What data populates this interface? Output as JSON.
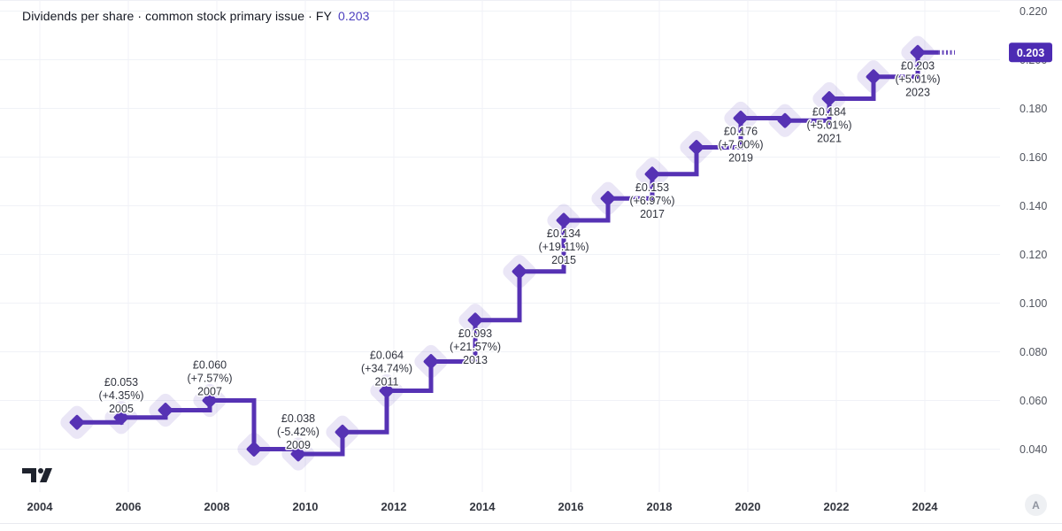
{
  "title": {
    "text": "Dividends per share · common stock primary issue · FY",
    "value": "0.203"
  },
  "attribution": {
    "label": "A"
  },
  "colors": {
    "accent": "#5632b4",
    "halo": "rgba(86,50,180,0.12)",
    "badge_bg": "#4c2bb3",
    "badge_text": "#ffffff",
    "grid": "#f0f2f7",
    "frame": "#e8eaef",
    "title_value": "#4a3dbe",
    "annotation_text": "#30333e",
    "annotation_halo": "#ffffff",
    "y_axis_text": "#51555f",
    "x_axis_text": "#33363f",
    "logo": "#1e222d"
  },
  "chart_data": {
    "type": "step-line",
    "title": "Dividends per share · common stock primary issue",
    "period": "FY",
    "currency": "GBP",
    "years": [
      2004,
      2005,
      2006,
      2007,
      2008,
      2009,
      2010,
      2011,
      2012,
      2013,
      2014,
      2015,
      2016,
      2017,
      2018,
      2019,
      2020,
      2021,
      2022,
      2023
    ],
    "values": [
      0.051,
      0.053,
      0.056,
      0.06,
      0.04,
      0.038,
      0.047,
      0.064,
      0.076,
      0.093,
      0.113,
      0.134,
      0.143,
      0.153,
      0.164,
      0.176,
      0.175,
      0.184,
      0.193,
      0.203
    ],
    "annotations": [
      {
        "year": 2005,
        "value_label": "£0.053",
        "change_label": "(+4.35%)",
        "year_label": "2005",
        "placement": "above"
      },
      {
        "year": 2007,
        "value_label": "£0.060",
        "change_label": "(+7.57%)",
        "year_label": "2007",
        "placement": "above"
      },
      {
        "year": 2009,
        "value_label": "£0.038",
        "change_label": "(-5.42%)",
        "year_label": "2009",
        "placement": "above"
      },
      {
        "year": 2011,
        "value_label": "£0.064",
        "change_label": "(+34.74%)",
        "year_label": "2011",
        "placement": "above"
      },
      {
        "year": 2013,
        "value_label": "£0.093",
        "change_label": "(+21.57%)",
        "year_label": "2013",
        "placement": "below"
      },
      {
        "year": 2015,
        "value_label": "£0.134",
        "change_label": "(+19.11%)",
        "year_label": "2015",
        "placement": "below"
      },
      {
        "year": 2017,
        "value_label": "£0.153",
        "change_label": "(+6.97%)",
        "year_label": "2017",
        "placement": "below"
      },
      {
        "year": 2019,
        "value_label": "£0.176",
        "change_label": "(+7.00%)",
        "year_label": "2019",
        "placement": "below"
      },
      {
        "year": 2021,
        "value_label": "£0.184",
        "change_label": "(+5.01%)",
        "year_label": "2021",
        "placement": "below"
      },
      {
        "year": 2023,
        "value_label": "£0.203",
        "change_label": "(+5.01%)",
        "year_label": "2023",
        "placement": "below"
      }
    ],
    "x_ticks": [
      "2004",
      "2006",
      "2008",
      "2010",
      "2012",
      "2014",
      "2016",
      "2018",
      "2020",
      "2022",
      "2024"
    ],
    "y_ticks": [
      "0.220",
      "0.200",
      "0.180",
      "0.160",
      "0.140",
      "0.120",
      "0.100",
      "0.080",
      "0.060",
      "0.040"
    ],
    "ylim": [
      0.04,
      0.22
    ],
    "grid": true,
    "legend_position": "none",
    "last_price_label": "0.203"
  }
}
